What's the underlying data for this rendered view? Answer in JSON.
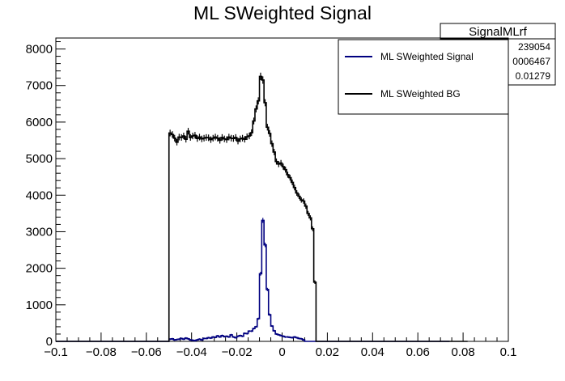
{
  "chart_data": {
    "type": "line",
    "title": "ML SWeighted Signal",
    "xlabel": "",
    "ylabel": "",
    "xlim": [
      -0.1,
      0.1
    ],
    "ylim": [
      0,
      8300
    ],
    "x_ticks": [
      "−0.1",
      "−0.08",
      "−0.06",
      "−0.04",
      "−0.02",
      "0",
      "0.02",
      "0.04",
      "0.06",
      "0.08",
      "0.1"
    ],
    "x_tick_values": [
      -0.1,
      -0.08,
      -0.06,
      -0.04,
      -0.02,
      0,
      0.02,
      0.04,
      0.06,
      0.08,
      0.1
    ],
    "y_ticks": [
      "0",
      "1000",
      "2000",
      "3000",
      "4000",
      "5000",
      "6000",
      "7000",
      "8000"
    ],
    "y_tick_values": [
      0,
      1000,
      2000,
      3000,
      4000,
      5000,
      6000,
      7000,
      8000
    ],
    "bin_edges_start": -0.1,
    "bin_width": 0.001,
    "series": [
      {
        "name": "ML SWeighted Signal",
        "color": "#000080",
        "values": [
          0,
          0,
          0,
          0,
          0,
          0,
          0,
          0,
          0,
          0,
          0,
          0,
          0,
          0,
          0,
          0,
          0,
          0,
          0,
          0,
          0,
          0,
          0,
          0,
          0,
          0,
          0,
          0,
          0,
          0,
          0,
          0,
          0,
          0,
          0,
          0,
          0,
          0,
          0,
          0,
          0,
          0,
          0,
          0,
          0,
          0,
          0,
          0,
          0,
          0,
          60,
          70,
          40,
          50,
          60,
          80,
          60,
          90,
          70,
          40,
          30,
          20,
          40,
          60,
          40,
          80,
          80,
          100,
          90,
          120,
          110,
          150,
          120,
          160,
          130,
          140,
          120,
          180,
          120,
          100,
          140,
          160,
          140,
          220,
          210,
          280,
          280,
          350,
          400,
          620,
          1850,
          3310,
          2640,
          1420,
          730,
          420,
          290,
          200,
          180,
          160,
          140,
          120,
          120,
          110,
          100,
          120,
          100,
          80,
          70,
          40,
          0,
          0,
          0,
          0,
          0,
          0,
          0,
          0,
          0,
          0,
          0,
          0,
          0,
          0,
          0,
          0,
          0,
          0,
          0,
          0,
          0,
          0,
          0,
          0,
          0,
          0,
          0,
          0,
          0,
          0,
          0,
          0,
          0,
          0,
          0,
          0,
          0,
          0,
          0,
          0,
          0,
          0,
          0,
          0,
          0,
          0,
          0,
          0,
          0,
          0,
          0,
          0,
          0,
          0,
          0,
          0,
          0,
          0,
          0,
          0,
          0,
          0,
          0,
          0
        ]
      },
      {
        "name": "ML SWeighted BG",
        "color": "#000000",
        "values": [
          0,
          0,
          0,
          0,
          0,
          0,
          0,
          0,
          0,
          0,
          0,
          0,
          0,
          0,
          0,
          0,
          0,
          0,
          0,
          0,
          0,
          0,
          0,
          0,
          0,
          0,
          0,
          0,
          0,
          0,
          0,
          0,
          0,
          0,
          0,
          0,
          0,
          0,
          0,
          0,
          0,
          0,
          0,
          0,
          0,
          0,
          0,
          0,
          0,
          0,
          5700,
          5660,
          5560,
          5450,
          5590,
          5580,
          5620,
          5530,
          5750,
          5580,
          5620,
          5640,
          5550,
          5590,
          5540,
          5560,
          5580,
          5570,
          5520,
          5560,
          5590,
          5560,
          5500,
          5580,
          5540,
          5520,
          5590,
          5560,
          5550,
          5580,
          5480,
          5540,
          5560,
          5530,
          5600,
          5620,
          5710,
          6030,
          6360,
          6580,
          7250,
          7150,
          6530,
          5860,
          5690,
          5410,
          5180,
          4920,
          4850,
          4880,
          4780,
          4700,
          4560,
          4480,
          4350,
          4210,
          4060,
          3970,
          3870,
          3840,
          3700,
          3500,
          3380,
          3080,
          1620,
          0,
          0,
          0,
          0,
          0,
          0,
          0,
          0,
          0,
          0,
          0,
          0,
          0,
          0,
          0,
          0,
          0,
          0,
          0,
          0,
          0,
          0,
          0,
          0,
          0,
          0,
          0,
          0,
          0,
          0,
          0,
          0,
          0,
          0,
          0,
          0,
          0,
          0,
          0,
          0,
          0,
          0,
          0,
          0,
          0,
          0,
          0,
          0,
          0,
          0,
          0,
          0,
          0,
          0,
          0,
          0,
          0,
          0,
          0,
          0,
          0,
          0,
          0,
          0,
          0,
          0,
          0
        ]
      }
    ],
    "legend": {
      "placement": "top-right"
    },
    "grid": false
  },
  "stats_box": {
    "title": "SignalMLrf",
    "lines": [
      "239054",
      "0006467",
      "0.01279"
    ]
  }
}
